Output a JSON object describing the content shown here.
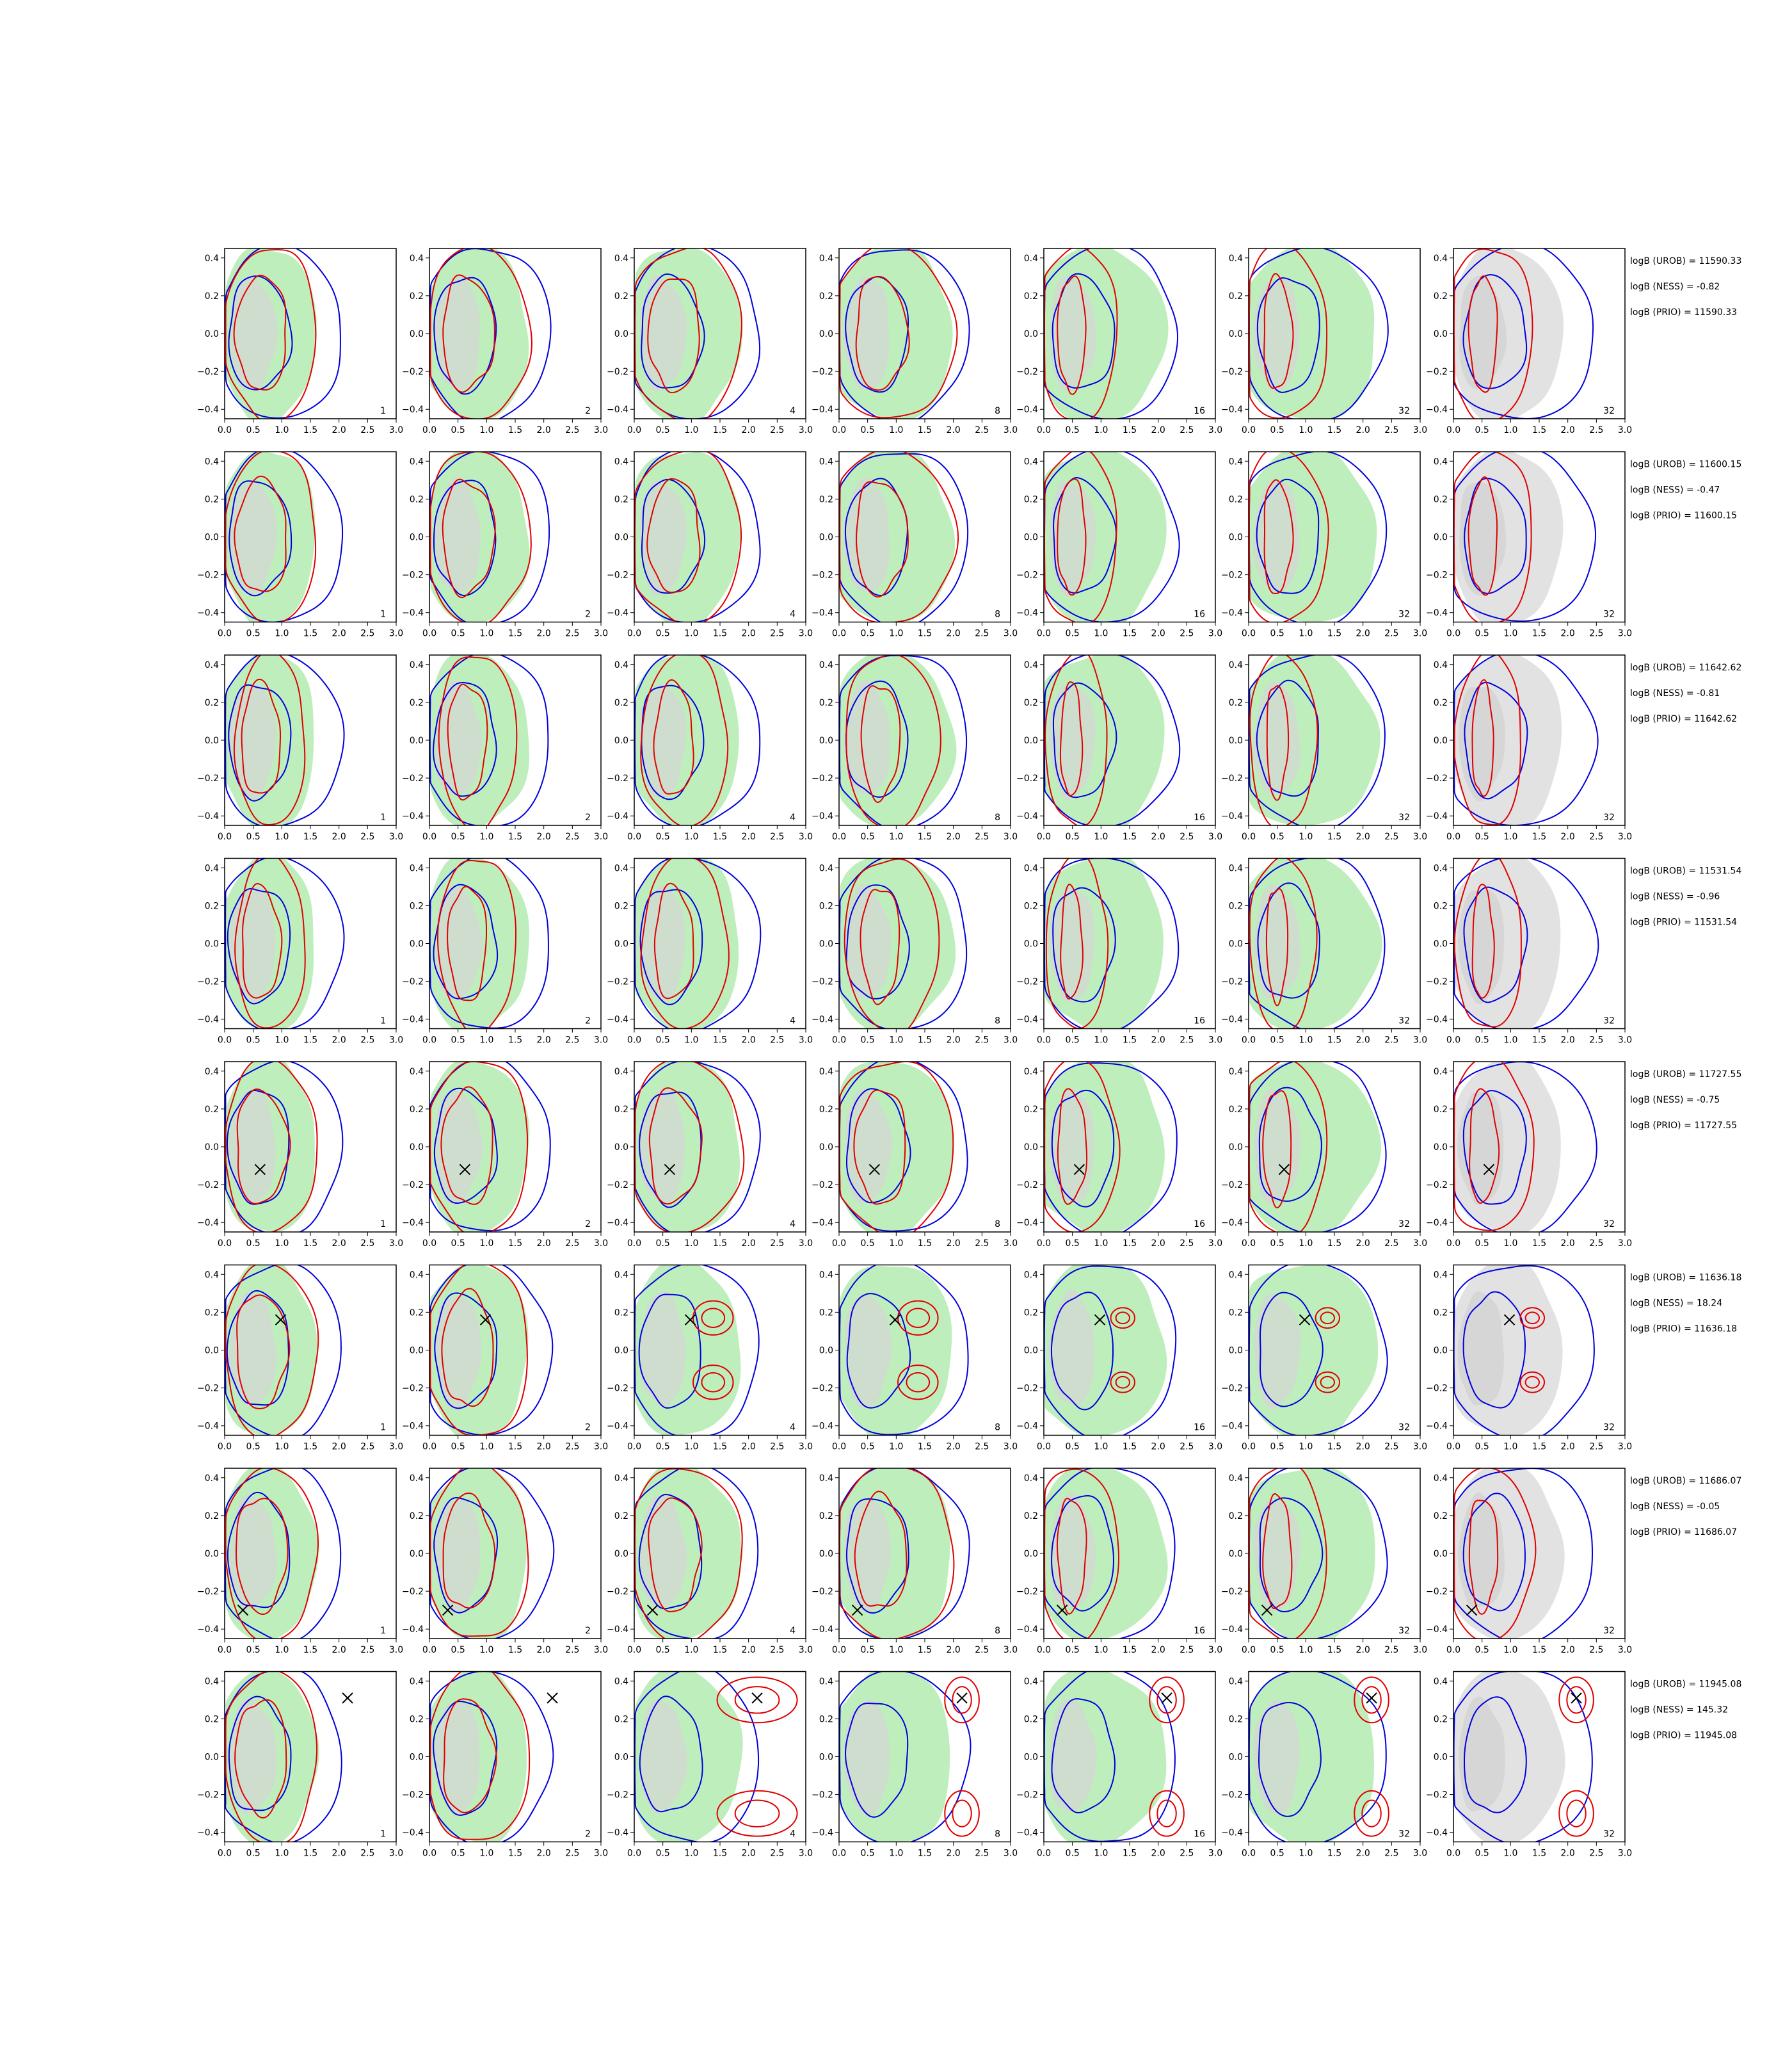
{
  "colors": {
    "posterior_fill": "#bfeebd",
    "prior_fill": "#d6d6d6",
    "urob_contour": "#0000dd",
    "ness_contour": "#e00000",
    "truth_marker": "#000000",
    "axes": "#000000"
  },
  "chart_data": {
    "type": "grid of contour plots",
    "xlim": [
      0.0,
      3.0
    ],
    "ylim": [
      -0.45,
      0.45
    ],
    "xticks": [
      "0.0",
      "0.5",
      "1.0",
      "1.5",
      "2.0",
      "2.5",
      "3.0"
    ],
    "yticks": [
      "0.4",
      "0.2",
      "0.0",
      "−0.2",
      "−0.4"
    ],
    "ytick_values": [
      0.4,
      0.2,
      0.0,
      -0.2,
      -0.4
    ],
    "column_labels": [
      "1",
      "2",
      "4",
      "8",
      "16",
      "32",
      "32"
    ],
    "rows": [
      {
        "stats": [
          "logB (UROB) = 11590.33",
          "logB (NESS) = -0.82",
          "logB (PRIO) = 11590.33"
        ],
        "truth": null,
        "truth_cols": [],
        "mode": "broad"
      },
      {
        "stats": [
          "logB (UROB) = 11600.15",
          "logB (NESS) = -0.47",
          "logB (PRIO) = 11600.15"
        ],
        "truth": null,
        "truth_cols": [],
        "mode": "broad"
      },
      {
        "stats": [
          "logB (UROB) = 11642.62",
          "logB (NESS) = -0.81",
          "logB (PRIO) = 11642.62"
        ],
        "truth": null,
        "truth_cols": [],
        "mode": "narrow"
      },
      {
        "stats": [
          "logB (UROB) = 11531.54",
          "logB (NESS) = -0.96",
          "logB (PRIO) = 11531.54"
        ],
        "truth": null,
        "truth_cols": [],
        "mode": "narrow"
      },
      {
        "stats": [
          "logB (UROB) = 11727.55",
          "logB (NESS) = -0.75",
          "logB (PRIO) = 11727.55"
        ],
        "truth": [
          0.62,
          -0.12
        ],
        "truth_cols": [
          0,
          1,
          2,
          3,
          4,
          5,
          6
        ],
        "mode": "broad"
      },
      {
        "stats": [
          "logB (UROB) = 11636.18",
          "logB (NESS) = 18.24",
          "logB (PRIO) = 11636.18"
        ],
        "truth": [
          0.98,
          0.16
        ],
        "truth_cols": [
          0,
          1,
          2,
          3,
          4,
          5,
          6
        ],
        "mode": "twin"
      },
      {
        "stats": [
          "logB (UROB) = 11686.07",
          "logB (NESS) = -0.05",
          "logB (PRIO) = 11686.07"
        ],
        "truth": [
          0.32,
          -0.3
        ],
        "truth_cols": [
          0,
          1,
          2,
          3,
          4,
          5,
          6
        ],
        "mode": "broad"
      },
      {
        "stats": [
          "logB (UROB) = 11945.08",
          "logB (NESS) = 145.32",
          "logB (PRIO) = 11945.08"
        ],
        "truth": [
          2.15,
          0.31
        ],
        "truth_cols": [
          0,
          1,
          2,
          3,
          4,
          5,
          6
        ],
        "mode": "far"
      }
    ]
  }
}
